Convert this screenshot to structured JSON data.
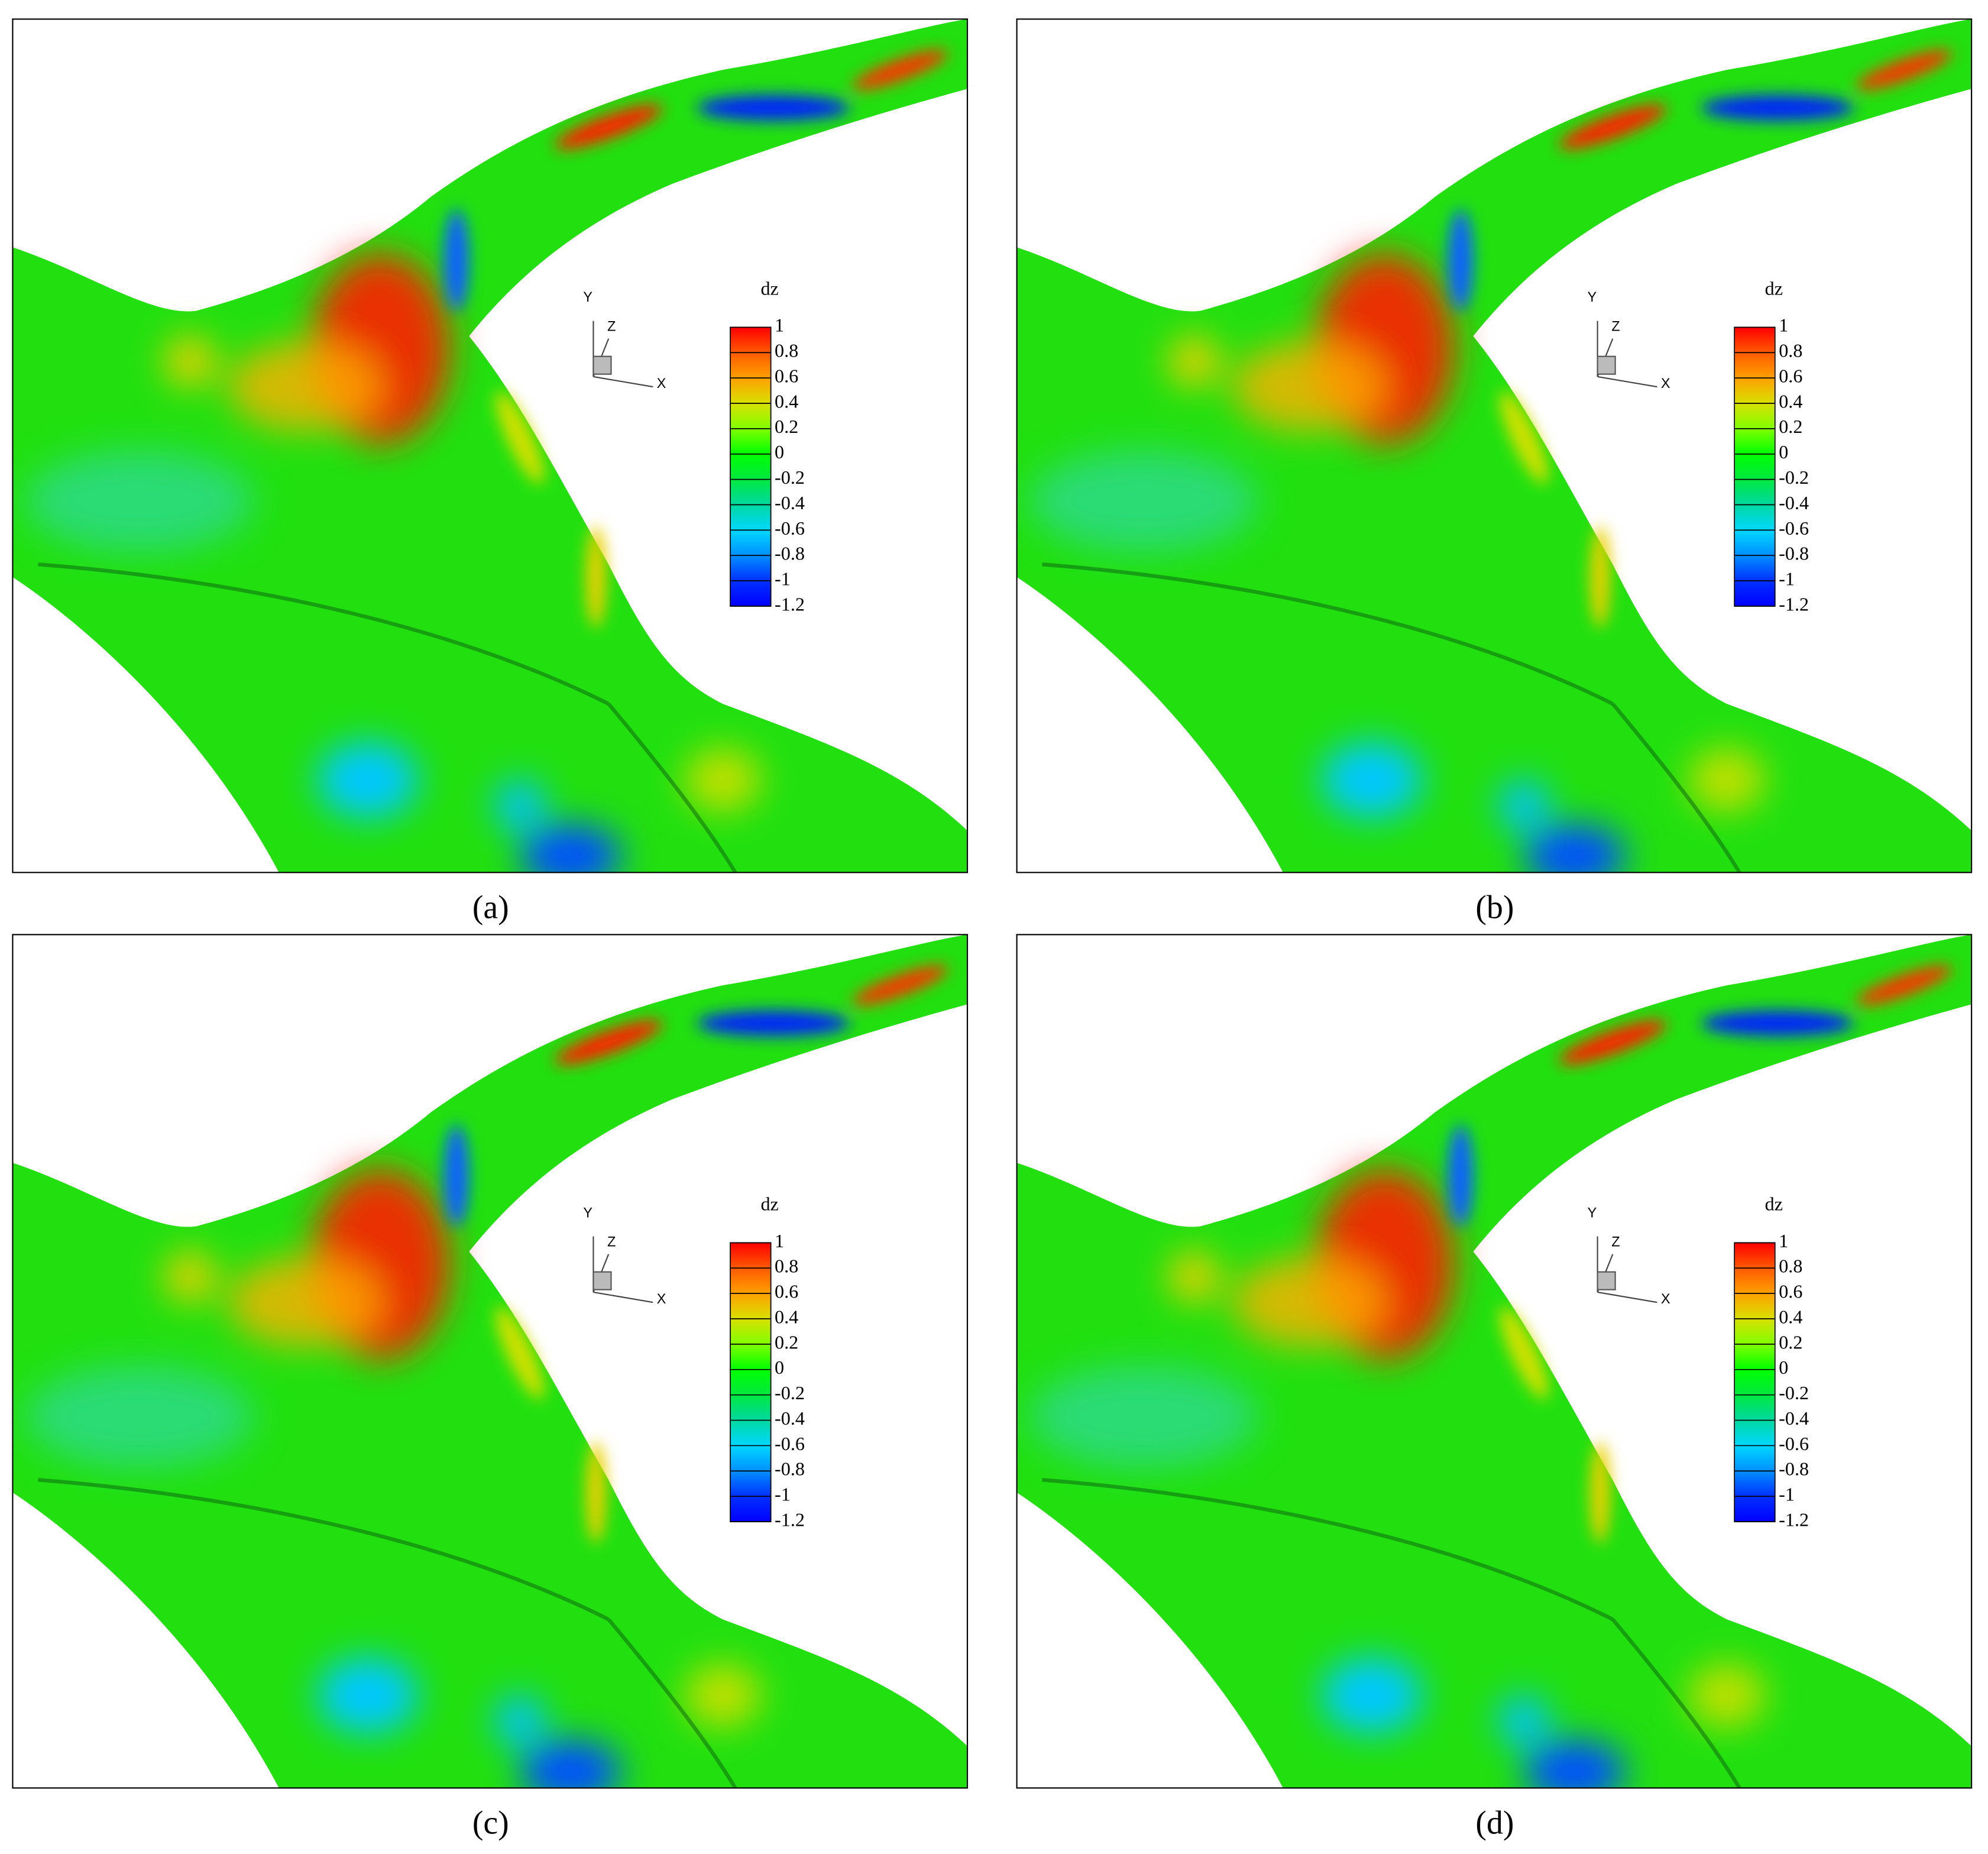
{
  "panels": [
    {
      "label": "(a)"
    },
    {
      "label": "(b)"
    },
    {
      "label": "(c)"
    },
    {
      "label": "(d)"
    }
  ],
  "colorbar": {
    "title": "dz",
    "ticks": [
      1,
      0.8,
      0.6,
      0.4,
      0.2,
      0,
      -0.2,
      -0.4,
      -0.6,
      -0.8,
      -1,
      -1.2
    ],
    "colors": [
      "#ff0000",
      "#ff5a00",
      "#ffa000",
      "#d8e000",
      "#80ff00",
      "#00ff00",
      "#00e840",
      "#00d8a0",
      "#00d8ff",
      "#0090ff",
      "#0030ff",
      "#0000ff"
    ]
  },
  "axes": {
    "x": "X",
    "y": "Y",
    "z": "Z"
  }
}
